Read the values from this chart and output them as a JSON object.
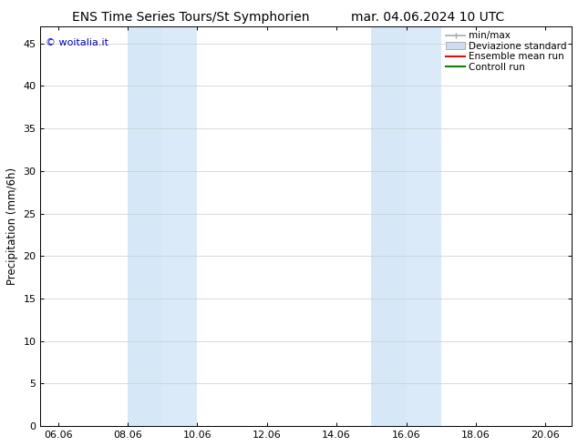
{
  "title_left": "ENS Time Series Tours/St Symphorien",
  "title_right": "mar. 04.06.2024 10 UTC",
  "ylabel": "Precipitation (mm/6h)",
  "watermark": "© woitalia.it",
  "watermark_color": "#0000cc",
  "xlim_start": 5.5,
  "xlim_end": 20.75,
  "ylim": [
    0,
    47
  ],
  "yticks": [
    0,
    5,
    10,
    15,
    20,
    25,
    30,
    35,
    40,
    45
  ],
  "xtick_labels": [
    "06.06",
    "08.06",
    "10.06",
    "12.06",
    "14.06",
    "16.06",
    "18.06",
    "20.06"
  ],
  "xtick_positions": [
    6,
    8,
    10,
    12,
    14,
    16,
    18,
    20
  ],
  "shaded_regions": [
    {
      "x_start": 8.0,
      "x_end": 9.0,
      "color": "#d6e8f7"
    },
    {
      "x_start": 9.0,
      "x_end": 10.0,
      "color": "#daeaf9"
    },
    {
      "x_start": 15.0,
      "x_end": 16.0,
      "color": "#d6e8f7"
    },
    {
      "x_start": 16.0,
      "x_end": 17.0,
      "color": "#daeaf9"
    }
  ],
  "legend_items": [
    {
      "label": "min/max",
      "color": "#aaaaaa",
      "lw": 1.2,
      "style": "line_with_caps"
    },
    {
      "label": "Deviazione standard",
      "color": "#ccddf0",
      "lw": 8,
      "style": "bar"
    },
    {
      "label": "Ensemble mean run",
      "color": "#ff0000",
      "lw": 1.5,
      "style": "line"
    },
    {
      "label": "Controll run",
      "color": "#008800",
      "lw": 1.5,
      "style": "line"
    }
  ],
  "bg_color": "#ffffff",
  "axes_bg_color": "#ffffff",
  "grid_color": "#cccccc",
  "tick_color": "#000000",
  "title_fontsize": 10,
  "label_fontsize": 8.5,
  "tick_fontsize": 8,
  "legend_fontsize": 7.5,
  "watermark_fontsize": 8
}
